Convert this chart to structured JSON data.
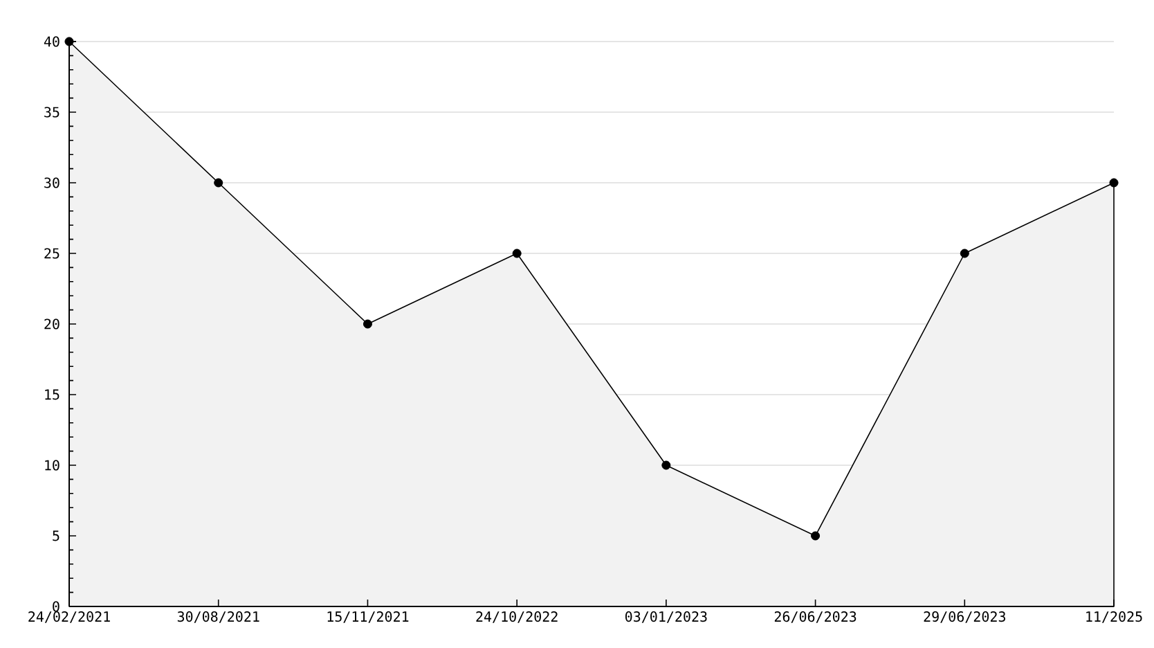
{
  "chart_data": {
    "type": "area",
    "categories": [
      "24/02/2021",
      "30/08/2021",
      "15/11/2021",
      "24/10/2022",
      "03/01/2023",
      "26/06/2023",
      "29/06/2023",
      "11/2025"
    ],
    "values": [
      40,
      30,
      20,
      25,
      10,
      5,
      25,
      30
    ],
    "color": "#f2f2f2",
    "ylim": [
      0,
      40
    ],
    "yticks": [
      0,
      5,
      10,
      15,
      20,
      25,
      30,
      35,
      40
    ],
    "grid": "y",
    "marker": "circle",
    "line_style": "solid"
  }
}
